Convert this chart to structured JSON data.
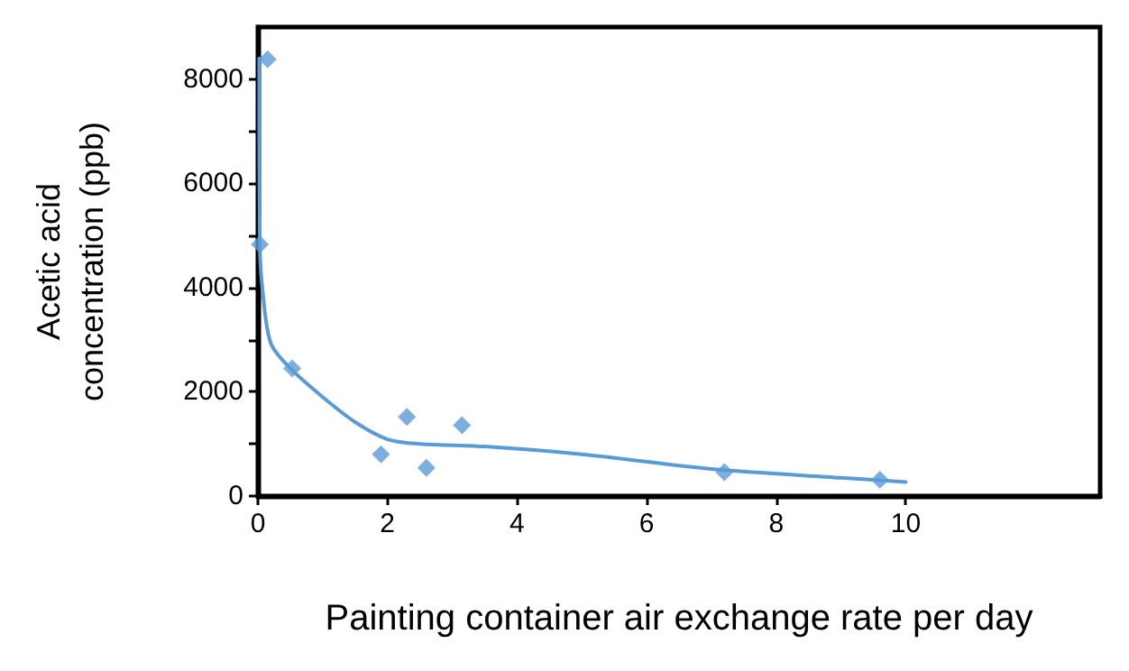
{
  "chart_data": {
    "type": "scatter",
    "xlabel": "Painting container air exchange rate per day",
    "ylabel": "Acetic acid concentration (ppb)",
    "xlim": [
      0,
      13
    ],
    "xticks": [
      0,
      2,
      4,
      6,
      8,
      10
    ],
    "ylim": [
      0,
      9000
    ],
    "yticks": [
      0,
      {
        "value": 1000,
        "label": null
      },
      2000,
      {
        "value": 3000,
        "label": null
      },
      4000,
      {
        "value": 5000,
        "label": null
      },
      6000,
      {
        "value": 7000,
        "label": null
      },
      8000
    ],
    "grid": false,
    "marker": "diamond",
    "series": [
      {
        "color": "#5b9bd5",
        "x": [
          0.15,
          0.03,
          0.53,
          1.9,
          2.3,
          2.6,
          3.15,
          7.2,
          9.6
        ],
        "values": [
          8380,
          4830,
          2450,
          800,
          1520,
          540,
          1360,
          460,
          310
        ]
      },
      {
        "type": "line",
        "color": "#5b9bd5",
        "marker": "none",
        "line_style": "solid",
        "x": [
          0.02,
          0.03,
          0.08,
          0.2,
          0.5,
          1,
          1.5,
          2,
          2.5,
          3.5,
          5,
          7,
          9,
          10
        ],
        "values": [
          8400,
          4800,
          3850,
          2930,
          2450,
          1900,
          1420,
          1090,
          1000,
          950,
          800,
          520,
          350,
          270
        ]
      }
    ]
  }
}
